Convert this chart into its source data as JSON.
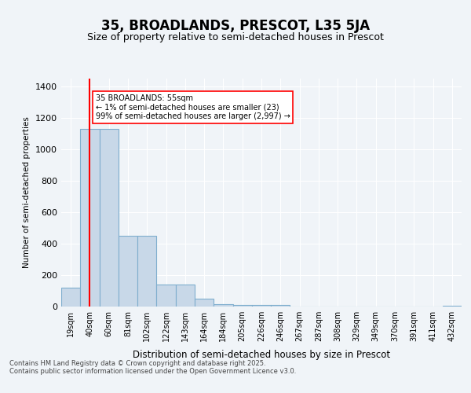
{
  "title": "35, BROADLANDS, PRESCOT, L35 5JA",
  "subtitle": "Size of property relative to semi-detached houses in Prescot",
  "xlabel": "Distribution of semi-detached houses by size in Prescot",
  "ylabel": "Number of semi-detached properties",
  "categories": [
    "19sqm",
    "40sqm",
    "60sqm",
    "81sqm",
    "102sqm",
    "122sqm",
    "143sqm",
    "164sqm",
    "184sqm",
    "205sqm",
    "226sqm",
    "246sqm",
    "267sqm",
    "287sqm",
    "308sqm",
    "329sqm",
    "349sqm",
    "370sqm",
    "391sqm",
    "411sqm",
    "432sqm"
  ],
  "values": [
    120,
    1130,
    1130,
    450,
    450,
    140,
    140,
    50,
    15,
    10,
    10,
    10,
    0,
    0,
    0,
    0,
    0,
    0,
    0,
    0,
    5
  ],
  "bar_color": "#c8d8e8",
  "bar_edge_color": "#7faece",
  "red_line_x": 1,
  "annotation_title": "35 BROADLANDS: 55sqm",
  "annotation_line1": "← 1% of semi-detached houses are smaller (23)",
  "annotation_line2": "99% of semi-detached houses are larger (2,997) →",
  "ylim": [
    0,
    1450
  ],
  "yticks": [
    0,
    200,
    400,
    600,
    800,
    1000,
    1200,
    1400
  ],
  "footer1": "Contains HM Land Registry data © Crown copyright and database right 2025.",
  "footer2": "Contains public sector information licensed under the Open Government Licence v3.0.",
  "bg_color": "#f0f4f8",
  "plot_bg_color": "#f0f4f8"
}
